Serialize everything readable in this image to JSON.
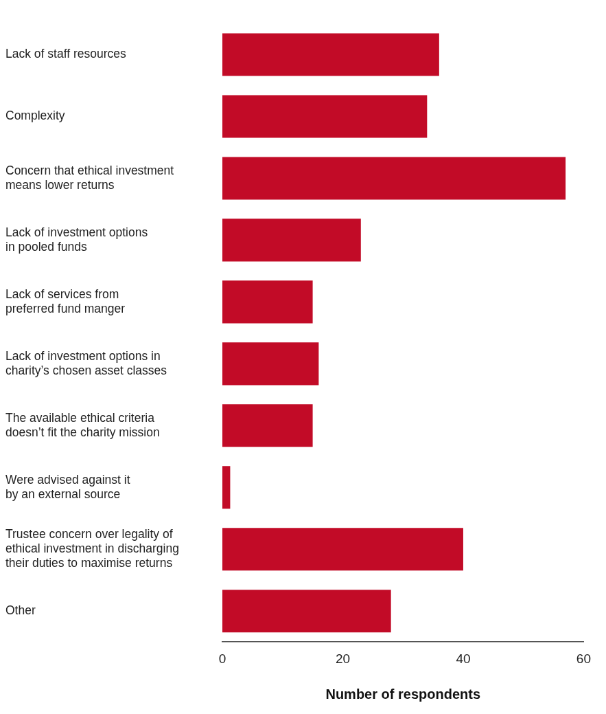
{
  "chart_data": {
    "type": "bar",
    "orientation": "horizontal",
    "xlabel": "Number of respondents",
    "categories": [
      "Lack of staff resources",
      "Complexity",
      "Concern that ethical investment\nmeans lower returns",
      "Lack of investment options\nin pooled funds",
      "Lack of services from\npreferred fund manger",
      "Lack of investment options in\ncharity’s chosen asset classes",
      "The available ethical criteria\ndoesn’t fit the charity mission",
      "Were advised against it\nby an external source",
      "Trustee concern over legality of\nethical investment in discharging\ntheir duties to maximise returns",
      "Other"
    ],
    "values": [
      36,
      34,
      57,
      23,
      15,
      16,
      15,
      1.3,
      40,
      28
    ],
    "color": "#c20b27",
    "xlim": [
      0,
      60
    ],
    "xticks": [
      0,
      20,
      40,
      60
    ],
    "grid": false,
    "legend": false
  }
}
